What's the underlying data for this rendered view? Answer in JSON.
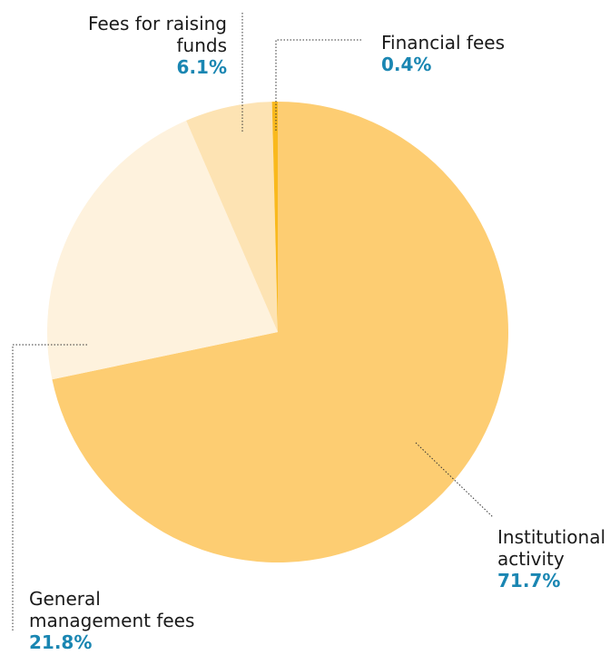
{
  "chart_data": {
    "type": "pie",
    "slices": [
      {
        "label": "Institutional activity",
        "value": 71.7,
        "display": "71.7%",
        "color": "#fdcd72"
      },
      {
        "label": "General management fees",
        "value": 21.8,
        "display": "21.8%",
        "color": "#fef2dd"
      },
      {
        "label": "Fees for raising funds",
        "value": 6.1,
        "display": "6.1%",
        "color": "#fde3b3"
      },
      {
        "label": "Financial fees",
        "value": 0.4,
        "display": "0.4%",
        "color": "#f9b91d"
      }
    ],
    "label_lines": {
      "fees_raising_1": "Fees for raising",
      "fees_raising_2": "funds",
      "financial_1": "Financial fees",
      "institutional_1": "Institutional",
      "institutional_2": "activity",
      "general_1": "General",
      "general_2": "management fees"
    },
    "legend": "callout labels"
  }
}
